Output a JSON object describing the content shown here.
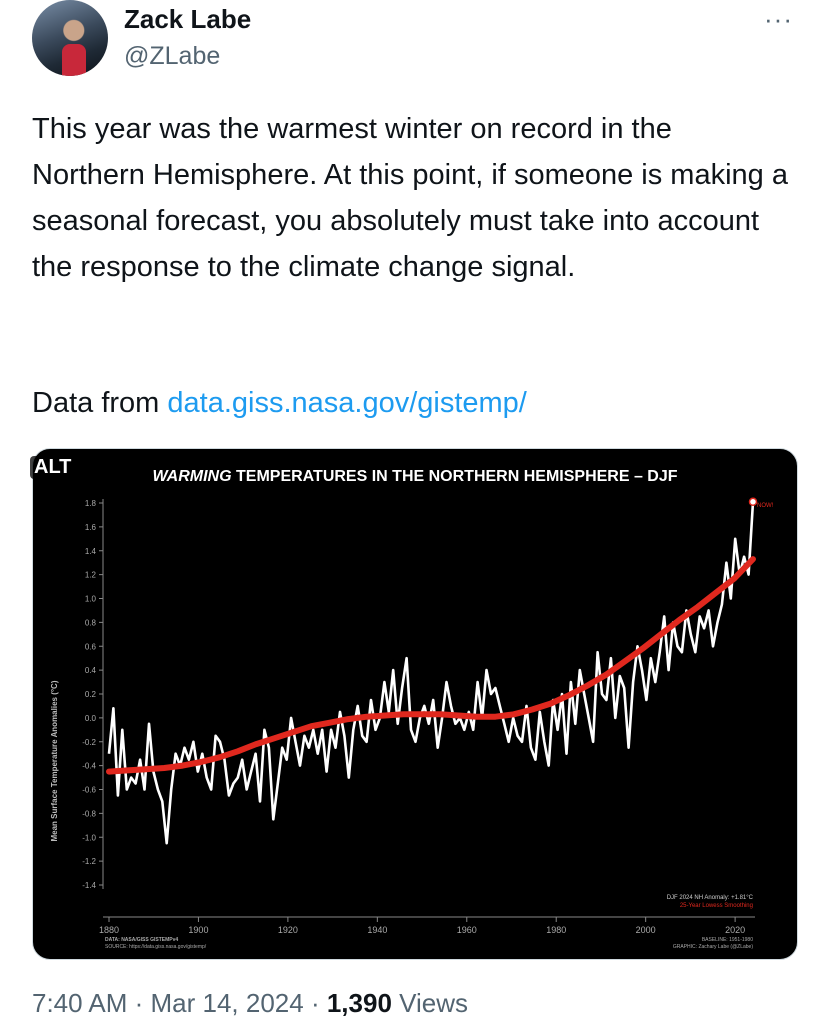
{
  "author": {
    "name": "Zack Labe",
    "handle": "@ZLabe",
    "more_icon": "···"
  },
  "tweet": {
    "text": "This year was the warmest winter on record in the Northern Hemisphere. At this point, if someone is making a seasonal forecast, you absolutely must take into account the response to the climate change signal.",
    "source_prefix": "Data from ",
    "source_link": "data.giss.nasa.gov/gistemp/",
    "time": "7:40 AM",
    "date": "Mar 14, 2024",
    "views": "1,390",
    "views_label": "Views",
    "sep": " · "
  },
  "media": {
    "alt_badge": "ALT",
    "title_italic": "WARMING",
    "title_rest": " TEMPERATURES IN THE NORTHERN HEMISPHERE – DJF",
    "now_label": "NOW!",
    "anomaly_note": "DJF 2024 NH Anomaly: +1.81°C",
    "smoothing_note": "25-Year Lowess Smoothing",
    "data_line": "DATA: NASA/GISS GISTEMPv4",
    "source_line": "SOURCE: https://data.giss.nasa.gov/gistemp/",
    "baseline_line": "BASELINE: 1951-1980",
    "graphic_line": "GRAPHIC: Zachary Labe (@ZLabe)"
  },
  "chart_data": {
    "type": "line",
    "title": "WARMING TEMPERATURES IN THE NORTHERN HEMISPHERE – DJF",
    "xlabel": "",
    "ylabel": "Mean Surface Temperature Anomalies (°C)",
    "xlim": [
      1880,
      2024
    ],
    "ylim": [
      -1.4,
      1.8
    ],
    "x_ticks": [
      "1880",
      "1900",
      "1920",
      "1940",
      "1960",
      "1980",
      "2000",
      "2020"
    ],
    "y_ticks": [
      "1.8",
      "1.6",
      "1.4",
      "1.2",
      "1.0",
      "0.8",
      "0.6",
      "0.4",
      "0.2",
      "0.0",
      "-0.2",
      "-0.4",
      "-0.6",
      "-0.8",
      "-1.0",
      "-1.2",
      "-1.4"
    ],
    "colors": {
      "observed": "#ffffff",
      "smoothed": "#e0281e",
      "background": "#000000"
    },
    "series": [
      {
        "values": [
          -0.3,
          0.08,
          -0.65,
          -0.1,
          -0.6,
          -0.5,
          -0.55,
          -0.35,
          -0.6,
          -0.05,
          -0.45,
          -0.6,
          -0.7,
          -1.05,
          -0.6,
          -0.3,
          -0.4,
          -0.25,
          -0.35,
          -0.2,
          -0.45,
          -0.3,
          -0.5,
          -0.6,
          -0.15,
          -0.2,
          -0.35,
          -0.65,
          -0.55,
          -0.5,
          -0.35,
          -0.6,
          -0.45,
          -0.3,
          -0.7,
          -0.1,
          -0.25,
          -0.85,
          -0.55,
          -0.25,
          -0.35,
          0.0,
          -0.2,
          -0.4,
          -0.15,
          -0.25,
          -0.1,
          -0.3,
          -0.1,
          -0.45,
          -0.1,
          -0.25,
          0.05,
          -0.15,
          -0.5,
          -0.1,
          0.1,
          -0.15,
          -0.2,
          0.15,
          -0.1,
          0.0,
          0.3,
          0.05,
          0.4,
          -0.05,
          0.25,
          0.5,
          -0.1,
          -0.2,
          0.0,
          0.1,
          -0.05,
          0.15,
          -0.25,
          0.0,
          0.3,
          0.1,
          -0.05,
          0.0,
          -0.1,
          0.05,
          -0.1,
          0.3,
          0.0,
          0.4,
          0.2,
          0.25,
          0.1,
          -0.05,
          -0.2,
          0.0,
          -0.15,
          -0.2,
          0.1,
          -0.25,
          -0.35,
          0.05,
          -0.2,
          -0.4,
          0.15,
          -0.1,
          0.2,
          -0.3,
          0.3,
          -0.05,
          0.4,
          0.2,
          0.0,
          -0.2,
          0.55,
          0.2,
          0.15,
          0.5,
          0.0,
          0.35,
          0.25,
          -0.25,
          0.3,
          0.6,
          0.4,
          0.15,
          0.5,
          0.3,
          0.55,
          0.85,
          0.4,
          0.8,
          0.6,
          0.55,
          0.9,
          0.7,
          0.55,
          0.85,
          0.75,
          0.9,
          0.6,
          0.8,
          0.95,
          1.3,
          1.0,
          1.5,
          1.2,
          1.35,
          1.2,
          1.81
        ]
      },
      {
        "values": [
          -0.45,
          -0.44,
          -0.43,
          -0.42,
          -0.4,
          -0.37,
          -0.33,
          -0.28,
          -0.22,
          -0.17,
          -0.12,
          -0.07,
          -0.04,
          -0.01,
          0.01,
          0.02,
          0.03,
          0.03,
          0.03,
          0.02,
          0.01,
          0.01,
          0.03,
          0.07,
          0.12,
          0.19,
          0.27,
          0.36,
          0.47,
          0.58,
          0.7,
          0.82,
          0.93,
          1.05,
          1.17,
          1.33
        ]
      }
    ]
  }
}
